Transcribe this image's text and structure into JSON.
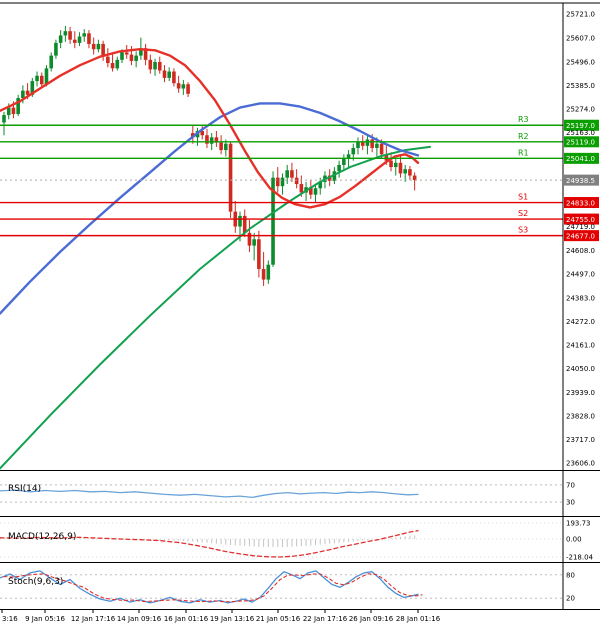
{
  "chart_data": {
    "type": "candlestick",
    "price_axis": {
      "range": [
        23606,
        25721
      ],
      "ticks": [
        "25721.0",
        "25607.0",
        "25496.0",
        "25385.0",
        "25274.0",
        "25163.0",
        "24719.0",
        "24608.0",
        "24497.0",
        "24383.0",
        "24272.0",
        "24161.0",
        "24050.0",
        "23939.0",
        "23828.0",
        "23717.0",
        "23606.0"
      ]
    },
    "current_price": {
      "value": 24938.5,
      "label": "24938.5"
    },
    "pivot_levels": [
      {
        "name": "R3",
        "price": 25197.0,
        "role": "resistance"
      },
      {
        "name": "R2",
        "price": 25119.0,
        "role": "resistance"
      },
      {
        "name": "R1",
        "price": 25041.0,
        "role": "resistance"
      },
      {
        "name": "S1",
        "price": 24833.0,
        "role": "support"
      },
      {
        "name": "S2",
        "price": 24755.0,
        "role": "support"
      },
      {
        "name": "S3",
        "price": 24677.0,
        "role": "support"
      }
    ],
    "time_axis": {
      "labels": [
        [
          "3:16",
          2
        ],
        [
          "9 Jan 05:16",
          45
        ],
        [
          "12 Jan 17:16",
          93
        ],
        [
          "14 Jan 09:16",
          139
        ],
        [
          "16 Jan 01:16",
          186
        ],
        [
          "19 Jan 13:16",
          232
        ],
        [
          "21 Jan 05:16",
          278
        ],
        [
          "22 Jan 17:16",
          325
        ],
        [
          "26 Jan 09:16",
          371
        ],
        [
          "28 Jan 01:16",
          418
        ]
      ]
    },
    "candles": [
      [
        25210,
        25260,
        25150,
        25245
      ],
      [
        25245,
        25300,
        25225,
        25280
      ],
      [
        25280,
        25310,
        25230,
        25250
      ],
      [
        25250,
        25340,
        25240,
        25325
      ],
      [
        25325,
        25385,
        25300,
        25360
      ],
      [
        25360,
        25395,
        25320,
        25340
      ],
      [
        25340,
        25420,
        25330,
        25405
      ],
      [
        25405,
        25450,
        25380,
        25430
      ],
      [
        25430,
        25445,
        25370,
        25390
      ],
      [
        25390,
        25480,
        25380,
        25465
      ],
      [
        25465,
        25540,
        25450,
        25525
      ],
      [
        25525,
        25600,
        25510,
        25585
      ],
      [
        25585,
        25645,
        25560,
        25620
      ],
      [
        25620,
        25665,
        25590,
        25640
      ],
      [
        25640,
        25660,
        25580,
        25600
      ],
      [
        25600,
        25640,
        25560,
        25585
      ],
      [
        25585,
        25635,
        25570,
        25615
      ],
      [
        25615,
        25650,
        25590,
        25630
      ],
      [
        25630,
        25645,
        25560,
        25580
      ],
      [
        25580,
        25610,
        25530,
        25555
      ],
      [
        25555,
        25600,
        25540,
        25580
      ],
      [
        25580,
        25595,
        25500,
        25520
      ],
      [
        25520,
        25560,
        25470,
        25490
      ],
      [
        25490,
        25530,
        25450,
        25465
      ],
      [
        25465,
        25520,
        25455,
        25505
      ],
      [
        25505,
        25555,
        25490,
        25540
      ],
      [
        25540,
        25575,
        25510,
        25530
      ],
      [
        25530,
        25570,
        25480,
        25500
      ],
      [
        25500,
        25545,
        25470,
        25525
      ],
      [
        25525,
        25610,
        25505,
        25560
      ],
      [
        25560,
        25580,
        25480,
        25505
      ],
      [
        25505,
        25530,
        25440,
        25460
      ],
      [
        25460,
        25510,
        25430,
        25495
      ],
      [
        25495,
        25520,
        25440,
        25455
      ],
      [
        25455,
        25480,
        25400,
        25420
      ],
      [
        25420,
        25470,
        25405,
        25450
      ],
      [
        25450,
        25465,
        25380,
        25395
      ],
      [
        25395,
        25430,
        25350,
        25370
      ],
      [
        25370,
        25410,
        25340,
        25390
      ],
      [
        25390,
        25400,
        25330,
        25345
      ],
      [
        25160,
        25200,
        25110,
        25140
      ],
      [
        25140,
        25185,
        25100,
        25170
      ],
      [
        25170,
        25200,
        25130,
        25150
      ],
      [
        25150,
        25180,
        25090,
        25110
      ],
      [
        25110,
        25160,
        25080,
        25140
      ],
      [
        25140,
        25170,
        25095,
        25115
      ],
      [
        25115,
        25150,
        25060,
        25080
      ],
      [
        25080,
        25130,
        25050,
        25110
      ],
      [
        25110,
        25120,
        24760,
        24790
      ],
      [
        24790,
        24840,
        24690,
        24720
      ],
      [
        24720,
        24790,
        24650,
        24770
      ],
      [
        24770,
        24800,
        24670,
        24690
      ],
      [
        24690,
        24750,
        24600,
        24630
      ],
      [
        24630,
        24690,
        24560,
        24660
      ],
      [
        24660,
        24700,
        24480,
        24520
      ],
      [
        24520,
        24600,
        24440,
        24470
      ],
      [
        24470,
        24560,
        24450,
        24540
      ],
      [
        24540,
        24980,
        24530,
        24950
      ],
      [
        24950,
        25000,
        24880,
        24910
      ],
      [
        24910,
        24970,
        24870,
        24950
      ],
      [
        24950,
        25010,
        24920,
        24985
      ],
      [
        24985,
        25020,
        24930,
        24950
      ],
      [
        24950,
        24990,
        24900,
        24920
      ],
      [
        24920,
        24960,
        24860,
        24880
      ],
      [
        24880,
        24930,
        24840,
        24905
      ],
      [
        24905,
        24940,
        24850,
        24870
      ],
      [
        24870,
        24920,
        24830,
        24900
      ],
      [
        24900,
        24950,
        24870,
        24930
      ],
      [
        24930,
        24980,
        24900,
        24960
      ],
      [
        24960,
        24990,
        24910,
        24935
      ],
      [
        24935,
        25000,
        24920,
        24980
      ],
      [
        24980,
        25030,
        24950,
        25010
      ],
      [
        25010,
        25060,
        24980,
        25040
      ],
      [
        25040,
        25080,
        25000,
        25060
      ],
      [
        25060,
        25110,
        25030,
        25090
      ],
      [
        25090,
        25140,
        25060,
        25120
      ],
      [
        25120,
        25150,
        25080,
        25100
      ],
      [
        25100,
        25145,
        25060,
        25130
      ],
      [
        25130,
        25155,
        25070,
        25090
      ],
      [
        25090,
        25140,
        25050,
        25110
      ],
      [
        25110,
        25130,
        25040,
        25060
      ],
      [
        25060,
        25100,
        25010,
        25030
      ],
      [
        25030,
        25070,
        24980,
        25000
      ],
      [
        25000,
        25040,
        24960,
        25020
      ],
      [
        25020,
        25050,
        24950,
        24970
      ],
      [
        24970,
        25010,
        24930,
        24990
      ],
      [
        24990,
        25005,
        24940,
        24960
      ],
      [
        24960,
        24975,
        24890,
        24938.5
      ]
    ],
    "overlays": {
      "ma_fast_red": [
        [
          0,
          25265
        ],
        [
          20,
          25310
        ],
        [
          40,
          25370
        ],
        [
          60,
          25430
        ],
        [
          80,
          25480
        ],
        [
          100,
          25520
        ],
        [
          120,
          25545
        ],
        [
          140,
          25555
        ],
        [
          155,
          25550
        ],
        [
          170,
          25525
        ],
        [
          185,
          25480
        ],
        [
          200,
          25405
        ],
        [
          215,
          25315
        ],
        [
          230,
          25200
        ],
        [
          245,
          25075
        ],
        [
          258,
          24975
        ],
        [
          270,
          24900
        ],
        [
          282,
          24855
        ],
        [
          295,
          24825
        ],
        [
          310,
          24810
        ],
        [
          325,
          24825
        ],
        [
          340,
          24860
        ],
        [
          355,
          24910
        ],
        [
          370,
          24965
        ],
        [
          385,
          25020
        ],
        [
          395,
          25050
        ],
        [
          405,
          25060
        ],
        [
          412,
          25045
        ],
        [
          418,
          25020
        ]
      ],
      "ma_slow_blue": [
        [
          0,
          24310
        ],
        [
          30,
          24460
        ],
        [
          60,
          24600
        ],
        [
          90,
          24730
        ],
        [
          120,
          24855
        ],
        [
          150,
          24975
        ],
        [
          175,
          25075
        ],
        [
          200,
          25170
        ],
        [
          220,
          25235
        ],
        [
          240,
          25280
        ],
        [
          260,
          25300
        ],
        [
          280,
          25300
        ],
        [
          300,
          25285
        ],
        [
          320,
          25255
        ],
        [
          340,
          25215
        ],
        [
          360,
          25170
        ],
        [
          380,
          25120
        ],
        [
          400,
          25080
        ],
        [
          418,
          25055
        ]
      ],
      "trendline_green": [
        [
          0,
          23580
        ],
        [
          50,
          23830
        ],
        [
          100,
          24070
        ],
        [
          150,
          24300
        ],
        [
          200,
          24520
        ],
        [
          250,
          24710
        ],
        [
          290,
          24840
        ],
        [
          320,
          24930
        ],
        [
          350,
          25000
        ],
        [
          380,
          25050
        ],
        [
          405,
          25080
        ],
        [
          430,
          25095
        ]
      ]
    },
    "indicators": {
      "rsi": {
        "label": "RSI(14)",
        "range": [
          0,
          100
        ],
        "levels": [
          70,
          30
        ],
        "series": [
          [
            0,
            56
          ],
          [
            15,
            58
          ],
          [
            30,
            54
          ],
          [
            45,
            57
          ],
          [
            60,
            55
          ],
          [
            75,
            57
          ],
          [
            90,
            54
          ],
          [
            105,
            55
          ],
          [
            120,
            52
          ],
          [
            135,
            54
          ],
          [
            150,
            51
          ],
          [
            165,
            48
          ],
          [
            180,
            46
          ],
          [
            195,
            48
          ],
          [
            210,
            45
          ],
          [
            225,
            42
          ],
          [
            240,
            44
          ],
          [
            252,
            41
          ],
          [
            264,
            46
          ],
          [
            276,
            50
          ],
          [
            288,
            52
          ],
          [
            300,
            49
          ],
          [
            312,
            51
          ],
          [
            324,
            52
          ],
          [
            336,
            50
          ],
          [
            348,
            53
          ],
          [
            360,
            52
          ],
          [
            372,
            54
          ],
          [
            384,
            52
          ],
          [
            396,
            49
          ],
          [
            408,
            47
          ],
          [
            418,
            48
          ]
        ]
      },
      "macd": {
        "label": "MACD(12,26,9)",
        "range": [
          -218.04,
          193.73
        ],
        "axis_labels": [
          "193.73",
          "0.00",
          "-218.04"
        ],
        "axis_values": [
          193.73,
          0,
          -218.04
        ],
        "series": [
          [
            0,
            15
          ],
          [
            20,
            8
          ],
          [
            40,
            18
          ],
          [
            60,
            12
          ],
          [
            80,
            20
          ],
          [
            100,
            10
          ],
          [
            120,
            0
          ],
          [
            140,
            -8
          ],
          [
            160,
            -20
          ],
          [
            180,
            -45
          ],
          [
            195,
            -75
          ],
          [
            210,
            -110
          ],
          [
            225,
            -150
          ],
          [
            240,
            -180
          ],
          [
            255,
            -205
          ],
          [
            268,
            -216
          ],
          [
            280,
            -218
          ],
          [
            292,
            -210
          ],
          [
            305,
            -190
          ],
          [
            318,
            -160
          ],
          [
            330,
            -128
          ],
          [
            342,
            -95
          ],
          [
            354,
            -65
          ],
          [
            366,
            -35
          ],
          [
            378,
            -8
          ],
          [
            390,
            25
          ],
          [
            400,
            55
          ],
          [
            410,
            85
          ],
          [
            418,
            100
          ]
        ]
      },
      "stoch": {
        "label": "Stoch(9,6,3)",
        "range": [
          0,
          100
        ],
        "levels": [
          80,
          20
        ],
        "k": [
          [
            0,
            72
          ],
          [
            10,
            82
          ],
          [
            20,
            68
          ],
          [
            30,
            85
          ],
          [
            40,
            90
          ],
          [
            50,
            72
          ],
          [
            60,
            55
          ],
          [
            70,
            68
          ],
          [
            80,
            45
          ],
          [
            90,
            30
          ],
          [
            100,
            18
          ],
          [
            110,
            12
          ],
          [
            120,
            20
          ],
          [
            130,
            10
          ],
          [
            140,
            16
          ],
          [
            150,
            8
          ],
          [
            160,
            14
          ],
          [
            170,
            22
          ],
          [
            180,
            12
          ],
          [
            190,
            8
          ],
          [
            200,
            16
          ],
          [
            210,
            10
          ],
          [
            220,
            14
          ],
          [
            228,
            8
          ],
          [
            236,
            12
          ],
          [
            244,
            18
          ],
          [
            252,
            10
          ],
          [
            260,
            22
          ],
          [
            268,
            45
          ],
          [
            276,
            70
          ],
          [
            284,
            88
          ],
          [
            292,
            80
          ],
          [
            300,
            70
          ],
          [
            308,
            85
          ],
          [
            316,
            90
          ],
          [
            324,
            72
          ],
          [
            332,
            55
          ],
          [
            340,
            48
          ],
          [
            348,
            60
          ],
          [
            356,
            75
          ],
          [
            364,
            85
          ],
          [
            372,
            88
          ],
          [
            380,
            70
          ],
          [
            388,
            48
          ],
          [
            396,
            32
          ],
          [
            404,
            22
          ],
          [
            412,
            26
          ],
          [
            418,
            30
          ]
        ]
      }
    },
    "colors": {
      "bull": "#0d8a2c",
      "bear": "#cf2a1f",
      "ma_fast": "#e73028",
      "ma_slow": "#4a6cd4",
      "trend": "#12a14f",
      "resistance": "#0a9e00",
      "support": "#e30000",
      "current_bg": "#808080",
      "rsi": "#69a3d9",
      "macd_line": "#e03030",
      "macd_hist": "#c4c4c4",
      "stoch_k": "#4a90d9",
      "stoch_d": "#e03030",
      "grid": "#bdbdbd",
      "frame": "#000000"
    }
  }
}
